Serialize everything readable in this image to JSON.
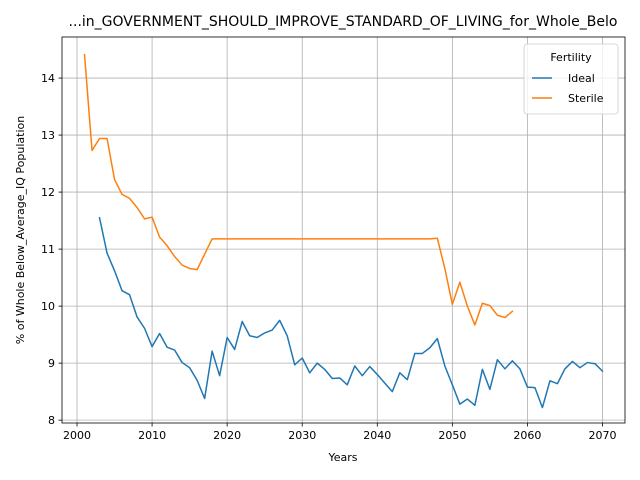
{
  "chart_data": {
    "type": "line",
    "title": "...in_GOVERNMENT_SHOULD_IMPROVE_STANDARD_OF_LIVING_for_Whole_Belo",
    "xlabel": "Years",
    "ylabel": "% of Whole Below_Average_IQ Population",
    "xlim": [
      1998,
      2073
    ],
    "ylim": [
      7.95,
      14.72
    ],
    "xticks": [
      2000,
      2010,
      2020,
      2030,
      2040,
      2050,
      2060,
      2070
    ],
    "yticks": [
      8,
      9,
      10,
      11,
      12,
      13,
      14
    ],
    "grid": true,
    "legend": {
      "title": "Fertility",
      "placement": "top-right"
    },
    "series": [
      {
        "name": "Ideal",
        "color": "#1f77b4",
        "x": [
          2003,
          2004,
          2005,
          2006,
          2007,
          2008,
          2009,
          2010,
          2011,
          2012,
          2013,
          2014,
          2015,
          2016,
          2017,
          2018,
          2019,
          2020,
          2021,
          2022,
          2023,
          2024,
          2025,
          2026,
          2027,
          2028,
          2029,
          2030,
          2031,
          2032,
          2033,
          2034,
          2035,
          2036,
          2037,
          2038,
          2039,
          2040,
          2041,
          2042,
          2043,
          2044,
          2045,
          2046,
          2047,
          2048,
          2049,
          2050,
          2051,
          2052,
          2053,
          2054,
          2055,
          2056,
          2057,
          2058,
          2059,
          2060,
          2061,
          2062,
          2063,
          2064,
          2065,
          2066,
          2067,
          2068,
          2069,
          2070
        ],
        "values": [
          11.55,
          10.93,
          10.62,
          10.27,
          10.2,
          9.81,
          9.61,
          9.29,
          9.52,
          9.28,
          9.23,
          9.01,
          8.92,
          8.7,
          8.38,
          9.21,
          8.78,
          9.45,
          9.24,
          9.73,
          9.48,
          9.45,
          9.53,
          9.58,
          9.75,
          9.48,
          8.97,
          9.09,
          8.83,
          9.0,
          8.89,
          8.73,
          8.74,
          8.62,
          8.95,
          8.78,
          8.94,
          8.8,
          8.65,
          8.5,
          8.83,
          8.71,
          9.17,
          9.17,
          9.27,
          9.43,
          8.95,
          8.62,
          8.28,
          8.37,
          8.26,
          8.89,
          8.54,
          9.06,
          8.9,
          9.04,
          8.9,
          8.58,
          8.57,
          8.22,
          8.69,
          8.64,
          8.9,
          9.03,
          8.92,
          9.01,
          8.99,
          8.86
        ]
      },
      {
        "name": "Sterile",
        "color": "#ff7f0e",
        "x": [
          2001,
          2002,
          2003,
          2004,
          2005,
          2006,
          2007,
          2008,
          2009,
          2010,
          2011,
          2012,
          2013,
          2014,
          2015,
          2016,
          2017,
          2018,
          2019,
          2020,
          2021,
          2022,
          2023,
          2024,
          2025,
          2026,
          2027,
          2028,
          2029,
          2030,
          2031,
          2032,
          2033,
          2034,
          2035,
          2036,
          2037,
          2038,
          2039,
          2040,
          2041,
          2042,
          2043,
          2044,
          2045,
          2046,
          2047,
          2048,
          2049,
          2050,
          2051,
          2052,
          2053,
          2054,
          2055,
          2056,
          2057,
          2058
        ],
        "values": [
          14.41,
          12.73,
          12.94,
          12.94,
          12.22,
          11.96,
          11.89,
          11.73,
          11.53,
          11.56,
          11.21,
          11.06,
          10.87,
          10.72,
          10.66,
          10.64,
          10.91,
          11.18,
          11.18,
          11.18,
          11.18,
          11.18,
          11.18,
          11.18,
          11.18,
          11.18,
          11.18,
          11.18,
          11.18,
          11.18,
          11.18,
          11.18,
          11.18,
          11.18,
          11.18,
          11.18,
          11.18,
          11.18,
          11.18,
          11.18,
          11.18,
          11.18,
          11.18,
          11.18,
          11.18,
          11.18,
          11.18,
          11.19,
          10.66,
          10.03,
          10.42,
          10.0,
          9.67,
          10.05,
          10.01,
          9.84,
          9.8,
          9.91
        ]
      }
    ]
  }
}
